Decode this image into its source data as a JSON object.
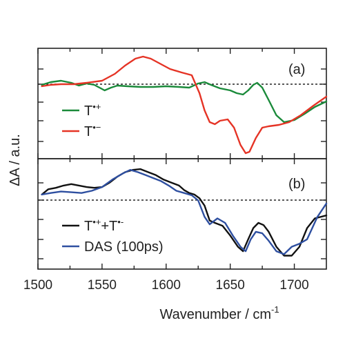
{
  "chart_data": [
    {
      "panel": "a",
      "type": "line",
      "panel_label": "(a)",
      "xlim": [
        1500,
        1725
      ],
      "ylim": [
        -1.05,
        0.55
      ],
      "grid": false,
      "legend_placement": "bottom-left",
      "zero_line": "dotted",
      "series": [
        {
          "name": "T•+",
          "name_base": "T",
          "name_sup": "•+",
          "color": "#1a8a3a",
          "points": [
            [
              1503,
              0.02
            ],
            [
              1510,
              0.06
            ],
            [
              1518,
              0.08
            ],
            [
              1526,
              0.05
            ],
            [
              1532,
              0.01
            ],
            [
              1538,
              0.04
            ],
            [
              1544,
              0.02
            ],
            [
              1548,
              -0.02
            ],
            [
              1552,
              -0.06
            ],
            [
              1557,
              -0.02
            ],
            [
              1562,
              0.01
            ],
            [
              1570,
              0.0
            ],
            [
              1580,
              -0.01
            ],
            [
              1590,
              -0.01
            ],
            [
              1600,
              0.0
            ],
            [
              1610,
              -0.01
            ],
            [
              1618,
              -0.02
            ],
            [
              1625,
              0.04
            ],
            [
              1630,
              0.06
            ],
            [
              1635,
              0.02
            ],
            [
              1642,
              -0.03
            ],
            [
              1650,
              -0.06
            ],
            [
              1655,
              -0.1
            ],
            [
              1660,
              -0.12
            ],
            [
              1664,
              -0.06
            ],
            [
              1668,
              0.02
            ],
            [
              1671,
              0.05
            ],
            [
              1675,
              -0.02
            ],
            [
              1680,
              -0.2
            ],
            [
              1686,
              -0.42
            ],
            [
              1692,
              -0.52
            ],
            [
              1700,
              -0.49
            ],
            [
              1708,
              -0.4
            ],
            [
              1716,
              -0.3
            ],
            [
              1725,
              -0.22
            ]
          ]
        },
        {
          "name": "T•−",
          "name_base": "T",
          "name_sup": "•−",
          "color": "#e53325",
          "points": [
            [
              1503,
              0.0
            ],
            [
              1510,
              0.02
            ],
            [
              1518,
              0.03
            ],
            [
              1528,
              0.03
            ],
            [
              1538,
              0.05
            ],
            [
              1550,
              0.08
            ],
            [
              1560,
              0.18
            ],
            [
              1568,
              0.3
            ],
            [
              1576,
              0.4
            ],
            [
              1582,
              0.43
            ],
            [
              1588,
              0.4
            ],
            [
              1595,
              0.33
            ],
            [
              1603,
              0.25
            ],
            [
              1612,
              0.2
            ],
            [
              1620,
              0.16
            ],
            [
              1626,
              -0.1
            ],
            [
              1630,
              -0.35
            ],
            [
              1634,
              -0.52
            ],
            [
              1638,
              -0.55
            ],
            [
              1642,
              -0.5
            ],
            [
              1648,
              -0.48
            ],
            [
              1653,
              -0.6
            ],
            [
              1658,
              -0.85
            ],
            [
              1662,
              -0.97
            ],
            [
              1665,
              -0.95
            ],
            [
              1670,
              -0.75
            ],
            [
              1675,
              -0.6
            ],
            [
              1680,
              -0.58
            ],
            [
              1688,
              -0.56
            ],
            [
              1696,
              -0.52
            ],
            [
              1705,
              -0.42
            ],
            [
              1715,
              -0.28
            ],
            [
              1725,
              -0.15
            ]
          ]
        }
      ]
    },
    {
      "panel": "b",
      "type": "line",
      "panel_label": "(b)",
      "xlim": [
        1500,
        1725
      ],
      "ylim": [
        -1.0,
        0.48
      ],
      "grid": false,
      "legend_placement": "bottom-left",
      "zero_line": "dotted",
      "series": [
        {
          "name": "T•++T•−",
          "color": "#111111",
          "points": [
            [
              1503,
              0.0
            ],
            [
              1508,
              0.07
            ],
            [
              1514,
              0.09
            ],
            [
              1520,
              0.12
            ],
            [
              1526,
              0.14
            ],
            [
              1532,
              0.12
            ],
            [
              1538,
              0.1
            ],
            [
              1544,
              0.09
            ],
            [
              1550,
              0.1
            ],
            [
              1556,
              0.16
            ],
            [
              1562,
              0.24
            ],
            [
              1568,
              0.3
            ],
            [
              1574,
              0.33
            ],
            [
              1580,
              0.34
            ],
            [
              1586,
              0.3
            ],
            [
              1592,
              0.26
            ],
            [
              1598,
              0.2
            ],
            [
              1604,
              0.16
            ],
            [
              1610,
              0.12
            ],
            [
              1614,
              0.06
            ],
            [
              1618,
              0.02
            ],
            [
              1622,
              0.0
            ],
            [
              1626,
              -0.05
            ],
            [
              1630,
              -0.15
            ],
            [
              1634,
              -0.35
            ],
            [
              1638,
              -0.38
            ],
            [
              1644,
              -0.42
            ],
            [
              1650,
              -0.55
            ],
            [
              1656,
              -0.7
            ],
            [
              1660,
              -0.76
            ],
            [
              1664,
              -0.6
            ],
            [
              1668,
              -0.45
            ],
            [
              1672,
              -0.38
            ],
            [
              1676,
              -0.41
            ],
            [
              1680,
              -0.5
            ],
            [
              1686,
              -0.7
            ],
            [
              1692,
              -0.82
            ],
            [
              1698,
              -0.82
            ],
            [
              1704,
              -0.7
            ],
            [
              1710,
              -0.45
            ],
            [
              1716,
              -0.32
            ],
            [
              1725,
              -0.28
            ]
          ]
        },
        {
          "name": "DAS (100ps)",
          "color": "#2e4fa0",
          "points": [
            [
              1503,
              0.0
            ],
            [
              1510,
              0.02
            ],
            [
              1518,
              0.04
            ],
            [
              1526,
              0.03
            ],
            [
              1534,
              0.02
            ],
            [
              1542,
              0.05
            ],
            [
              1550,
              0.1
            ],
            [
              1558,
              0.2
            ],
            [
              1566,
              0.28
            ],
            [
              1572,
              0.33
            ],
            [
              1578,
              0.3
            ],
            [
              1584,
              0.26
            ],
            [
              1590,
              0.22
            ],
            [
              1596,
              0.18
            ],
            [
              1602,
              0.12
            ],
            [
              1608,
              0.05
            ],
            [
              1614,
              0.02
            ],
            [
              1620,
              -0.01
            ],
            [
              1625,
              -0.08
            ],
            [
              1630,
              -0.3
            ],
            [
              1634,
              -0.4
            ],
            [
              1640,
              -0.32
            ],
            [
              1646,
              -0.38
            ],
            [
              1652,
              -0.55
            ],
            [
              1658,
              -0.7
            ],
            [
              1662,
              -0.76
            ],
            [
              1666,
              -0.6
            ],
            [
              1670,
              -0.5
            ],
            [
              1675,
              -0.52
            ],
            [
              1680,
              -0.62
            ],
            [
              1686,
              -0.76
            ],
            [
              1692,
              -0.8
            ],
            [
              1698,
              -0.7
            ],
            [
              1704,
              -0.66
            ],
            [
              1710,
              -0.6
            ],
            [
              1718,
              -0.3
            ],
            [
              1725,
              -0.12
            ]
          ]
        }
      ]
    }
  ],
  "axes": {
    "xlabel": "Wavenumber / cm",
    "xlabel_sup": "-1",
    "ylabel": "ΔA / a.u.",
    "xticks": [
      1500,
      1550,
      1600,
      1650,
      1700
    ],
    "xtick_labels": [
      "1500",
      "1550",
      "1600",
      "1650",
      "1700"
    ]
  },
  "legend_b": {
    "item1_base": "T",
    "item1_sup1": "•+",
    "item1_mid": "+T",
    "item1_sup2": "•-",
    "item2": "DAS (100ps)"
  }
}
